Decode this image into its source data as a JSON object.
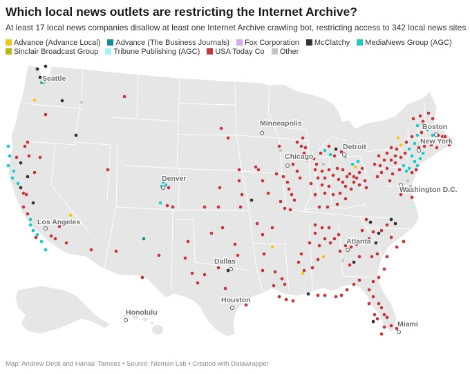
{
  "title": "Which local news outlets are restricting the Internet Archive?",
  "subtitle": "At least 17 local news companies disallow at least one Internet Archive crawling bot, restricting access to 342 local news sites",
  "legend": [
    {
      "label": "Advance (Advance Local)",
      "color": "#F2C318"
    },
    {
      "label": "Advance (The Business Journals)",
      "color": "#17899A"
    },
    {
      "label": "Fox Corporation",
      "color": "#D9A9F0"
    },
    {
      "label": "McClatchy",
      "color": "#333333"
    },
    {
      "label": "MediaNews Group (AGC)",
      "color": "#22C9C3"
    },
    {
      "label": "Sinclair Broadcast Group",
      "color": "#B9B712"
    },
    {
      "label": "Tribune Publishing (AGC)",
      "color": "#A7F2F4"
    },
    {
      "label": "USA Today Co",
      "color": "#C0393E"
    },
    {
      "label": "Other",
      "color": "#C4C4C4"
    }
  ],
  "cities": [
    "Seattle",
    "Minneapolis",
    "Detroit",
    "Chicago",
    "Boston",
    "New York",
    "Denver",
    "Washington D.C.",
    "Los Angeles",
    "Atlanta",
    "Dallas",
    "Houston",
    "Honolulu",
    "Miami"
  ],
  "footer": "Map: Andrew Deck and Hanaa' Tameez • Source: Nieman Lab • Created with Datawrapper"
}
